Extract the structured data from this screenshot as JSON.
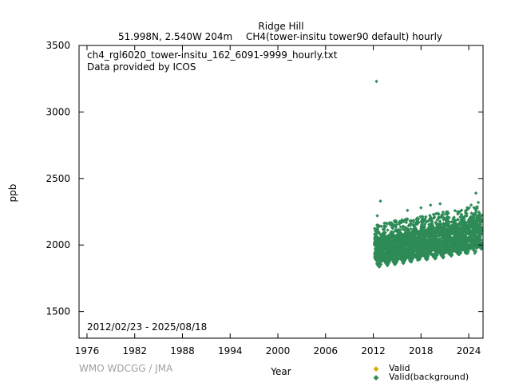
{
  "chart_data": {
    "type": "scatter",
    "title": "Ridge Hill",
    "subtitle_location": "51.998N, 2.540W 204m",
    "subtitle_parameter": "CH4(tower-insitu tower90 default) hourly",
    "file_label": "ch4_rgl6020_tower-insitu_162_6091-9999_hourly.txt",
    "provider_label": "Data provided by ICOS",
    "date_range_label": "2012/02/23 - 2025/08/18",
    "xlabel": "Year",
    "ylabel": "ppb",
    "xlim": [
      1975,
      2025.8
    ],
    "ylim": [
      1300,
      3500
    ],
    "x_ticks": [
      1976,
      1982,
      1988,
      1994,
      2000,
      2006,
      2012,
      2018,
      2024
    ],
    "x_tick_labels": [
      "1976",
      "1982",
      "1988",
      "1994",
      "2000",
      "2006",
      "2012",
      "2018",
      "2024"
    ],
    "y_ticks": [
      1500,
      2000,
      2500,
      3000,
      3500
    ],
    "y_tick_labels": [
      "1500",
      "2000",
      "2500",
      "3000",
      "3500"
    ],
    "grid": false,
    "legend_placement": "bottom-right, below plot",
    "series": [
      {
        "name": "Valid",
        "color": "#d4b000",
        "points": []
      },
      {
        "name": "Valid(background)",
        "color": "#2e8b57",
        "band": {
          "x_start": 2012.15,
          "x_end": 2025.63,
          "lower_start": 1850,
          "lower_end": 1965,
          "upper_start": 2065,
          "upper_end": 2210
        },
        "outliers": [
          {
            "x": 2012.4,
            "y": 3230
          },
          {
            "x": 2012.5,
            "y": 2220
          },
          {
            "x": 2012.9,
            "y": 2330
          },
          {
            "x": 2016.3,
            "y": 2260
          },
          {
            "x": 2018.0,
            "y": 2280
          },
          {
            "x": 2019.2,
            "y": 2300
          },
          {
            "x": 2020.4,
            "y": 2310
          },
          {
            "x": 2022.6,
            "y": 2250
          },
          {
            "x": 2024.3,
            "y": 2300
          },
          {
            "x": 2024.9,
            "y": 2390
          },
          {
            "x": 2025.2,
            "y": 2320
          }
        ]
      }
    ]
  },
  "watermark": "WMO WDCGG / JMA"
}
